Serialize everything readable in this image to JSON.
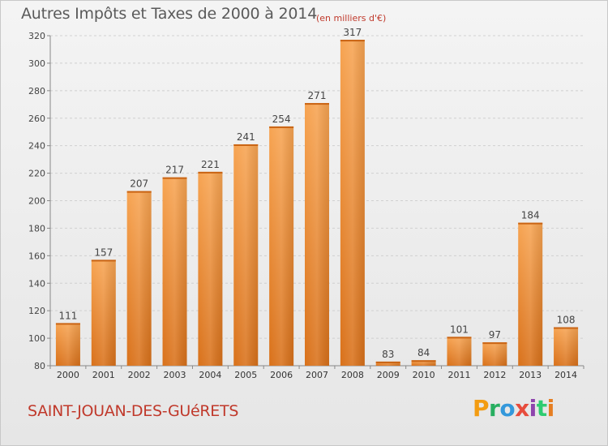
{
  "header": {
    "title": "Autres Impôts et Taxes de 2000 à 2014",
    "unit": "(en milliers d'€)"
  },
  "footer": {
    "commune": "SAINT-JOUAN-DES-GUéRETS",
    "brand": "Proxiti",
    "brand_colors": [
      "#f39c12",
      "#27ae60",
      "#3498db",
      "#e74c3c",
      "#8e44ad",
      "#2ecc71",
      "#e67e22"
    ]
  },
  "chart_data": {
    "type": "bar",
    "categories": [
      "2000",
      "2001",
      "2002",
      "2003",
      "2004",
      "2005",
      "2006",
      "2007",
      "2008",
      "2009",
      "2010",
      "2011",
      "2012",
      "2013",
      "2014"
    ],
    "values": [
      111,
      157,
      207,
      217,
      221,
      241,
      254,
      271,
      317,
      83,
      84,
      101,
      97,
      184,
      108
    ],
    "ylim": [
      80,
      320
    ],
    "yticks": [
      80,
      100,
      120,
      140,
      160,
      180,
      200,
      220,
      240,
      260,
      280,
      300,
      320
    ],
    "grid": true,
    "bar_color": "#f0923a",
    "title": "Autres Impôts et Taxes de 2000 à 2014",
    "xlabel": "",
    "ylabel": ""
  }
}
